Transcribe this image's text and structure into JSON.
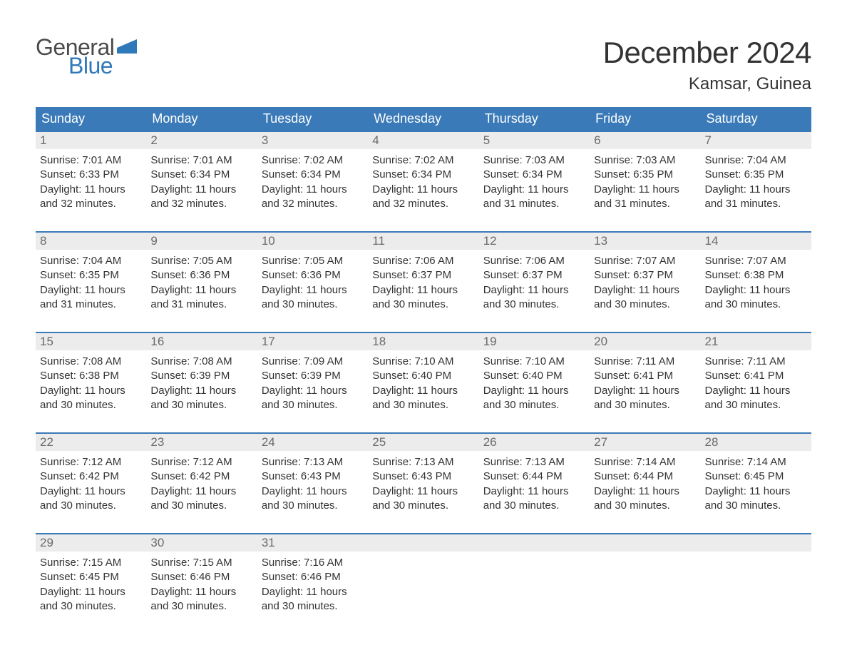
{
  "logo": {
    "part1": "General",
    "part2": "Blue",
    "color_gray": "#4a4a4a",
    "color_blue": "#2f78b9"
  },
  "title": "December 2024",
  "location": "Kamsar, Guinea",
  "colors": {
    "header_bg": "#3b7ab8",
    "header_text": "#ffffff",
    "daynum_bg": "#ececec",
    "border_top": "#3b7ab8",
    "text": "#333333",
    "daynum_text": "#6a6a6a"
  },
  "weekdays": [
    "Sunday",
    "Monday",
    "Tuesday",
    "Wednesday",
    "Thursday",
    "Friday",
    "Saturday"
  ],
  "weeks": [
    [
      {
        "n": "1",
        "sr": "Sunrise: 7:01 AM",
        "ss": "Sunset: 6:33 PM",
        "d1": "Daylight: 11 hours",
        "d2": "and 32 minutes."
      },
      {
        "n": "2",
        "sr": "Sunrise: 7:01 AM",
        "ss": "Sunset: 6:34 PM",
        "d1": "Daylight: 11 hours",
        "d2": "and 32 minutes."
      },
      {
        "n": "3",
        "sr": "Sunrise: 7:02 AM",
        "ss": "Sunset: 6:34 PM",
        "d1": "Daylight: 11 hours",
        "d2": "and 32 minutes."
      },
      {
        "n": "4",
        "sr": "Sunrise: 7:02 AM",
        "ss": "Sunset: 6:34 PM",
        "d1": "Daylight: 11 hours",
        "d2": "and 32 minutes."
      },
      {
        "n": "5",
        "sr": "Sunrise: 7:03 AM",
        "ss": "Sunset: 6:34 PM",
        "d1": "Daylight: 11 hours",
        "d2": "and 31 minutes."
      },
      {
        "n": "6",
        "sr": "Sunrise: 7:03 AM",
        "ss": "Sunset: 6:35 PM",
        "d1": "Daylight: 11 hours",
        "d2": "and 31 minutes."
      },
      {
        "n": "7",
        "sr": "Sunrise: 7:04 AM",
        "ss": "Sunset: 6:35 PM",
        "d1": "Daylight: 11 hours",
        "d2": "and 31 minutes."
      }
    ],
    [
      {
        "n": "8",
        "sr": "Sunrise: 7:04 AM",
        "ss": "Sunset: 6:35 PM",
        "d1": "Daylight: 11 hours",
        "d2": "and 31 minutes."
      },
      {
        "n": "9",
        "sr": "Sunrise: 7:05 AM",
        "ss": "Sunset: 6:36 PM",
        "d1": "Daylight: 11 hours",
        "d2": "and 31 minutes."
      },
      {
        "n": "10",
        "sr": "Sunrise: 7:05 AM",
        "ss": "Sunset: 6:36 PM",
        "d1": "Daylight: 11 hours",
        "d2": "and 30 minutes."
      },
      {
        "n": "11",
        "sr": "Sunrise: 7:06 AM",
        "ss": "Sunset: 6:37 PM",
        "d1": "Daylight: 11 hours",
        "d2": "and 30 minutes."
      },
      {
        "n": "12",
        "sr": "Sunrise: 7:06 AM",
        "ss": "Sunset: 6:37 PM",
        "d1": "Daylight: 11 hours",
        "d2": "and 30 minutes."
      },
      {
        "n": "13",
        "sr": "Sunrise: 7:07 AM",
        "ss": "Sunset: 6:37 PM",
        "d1": "Daylight: 11 hours",
        "d2": "and 30 minutes."
      },
      {
        "n": "14",
        "sr": "Sunrise: 7:07 AM",
        "ss": "Sunset: 6:38 PM",
        "d1": "Daylight: 11 hours",
        "d2": "and 30 minutes."
      }
    ],
    [
      {
        "n": "15",
        "sr": "Sunrise: 7:08 AM",
        "ss": "Sunset: 6:38 PM",
        "d1": "Daylight: 11 hours",
        "d2": "and 30 minutes."
      },
      {
        "n": "16",
        "sr": "Sunrise: 7:08 AM",
        "ss": "Sunset: 6:39 PM",
        "d1": "Daylight: 11 hours",
        "d2": "and 30 minutes."
      },
      {
        "n": "17",
        "sr": "Sunrise: 7:09 AM",
        "ss": "Sunset: 6:39 PM",
        "d1": "Daylight: 11 hours",
        "d2": "and 30 minutes."
      },
      {
        "n": "18",
        "sr": "Sunrise: 7:10 AM",
        "ss": "Sunset: 6:40 PM",
        "d1": "Daylight: 11 hours",
        "d2": "and 30 minutes."
      },
      {
        "n": "19",
        "sr": "Sunrise: 7:10 AM",
        "ss": "Sunset: 6:40 PM",
        "d1": "Daylight: 11 hours",
        "d2": "and 30 minutes."
      },
      {
        "n": "20",
        "sr": "Sunrise: 7:11 AM",
        "ss": "Sunset: 6:41 PM",
        "d1": "Daylight: 11 hours",
        "d2": "and 30 minutes."
      },
      {
        "n": "21",
        "sr": "Sunrise: 7:11 AM",
        "ss": "Sunset: 6:41 PM",
        "d1": "Daylight: 11 hours",
        "d2": "and 30 minutes."
      }
    ],
    [
      {
        "n": "22",
        "sr": "Sunrise: 7:12 AM",
        "ss": "Sunset: 6:42 PM",
        "d1": "Daylight: 11 hours",
        "d2": "and 30 minutes."
      },
      {
        "n": "23",
        "sr": "Sunrise: 7:12 AM",
        "ss": "Sunset: 6:42 PM",
        "d1": "Daylight: 11 hours",
        "d2": "and 30 minutes."
      },
      {
        "n": "24",
        "sr": "Sunrise: 7:13 AM",
        "ss": "Sunset: 6:43 PM",
        "d1": "Daylight: 11 hours",
        "d2": "and 30 minutes."
      },
      {
        "n": "25",
        "sr": "Sunrise: 7:13 AM",
        "ss": "Sunset: 6:43 PM",
        "d1": "Daylight: 11 hours",
        "d2": "and 30 minutes."
      },
      {
        "n": "26",
        "sr": "Sunrise: 7:13 AM",
        "ss": "Sunset: 6:44 PM",
        "d1": "Daylight: 11 hours",
        "d2": "and 30 minutes."
      },
      {
        "n": "27",
        "sr": "Sunrise: 7:14 AM",
        "ss": "Sunset: 6:44 PM",
        "d1": "Daylight: 11 hours",
        "d2": "and 30 minutes."
      },
      {
        "n": "28",
        "sr": "Sunrise: 7:14 AM",
        "ss": "Sunset: 6:45 PM",
        "d1": "Daylight: 11 hours",
        "d2": "and 30 minutes."
      }
    ],
    [
      {
        "n": "29",
        "sr": "Sunrise: 7:15 AM",
        "ss": "Sunset: 6:45 PM",
        "d1": "Daylight: 11 hours",
        "d2": "and 30 minutes."
      },
      {
        "n": "30",
        "sr": "Sunrise: 7:15 AM",
        "ss": "Sunset: 6:46 PM",
        "d1": "Daylight: 11 hours",
        "d2": "and 30 minutes."
      },
      {
        "n": "31",
        "sr": "Sunrise: 7:16 AM",
        "ss": "Sunset: 6:46 PM",
        "d1": "Daylight: 11 hours",
        "d2": "and 30 minutes."
      },
      null,
      null,
      null,
      null
    ]
  ]
}
